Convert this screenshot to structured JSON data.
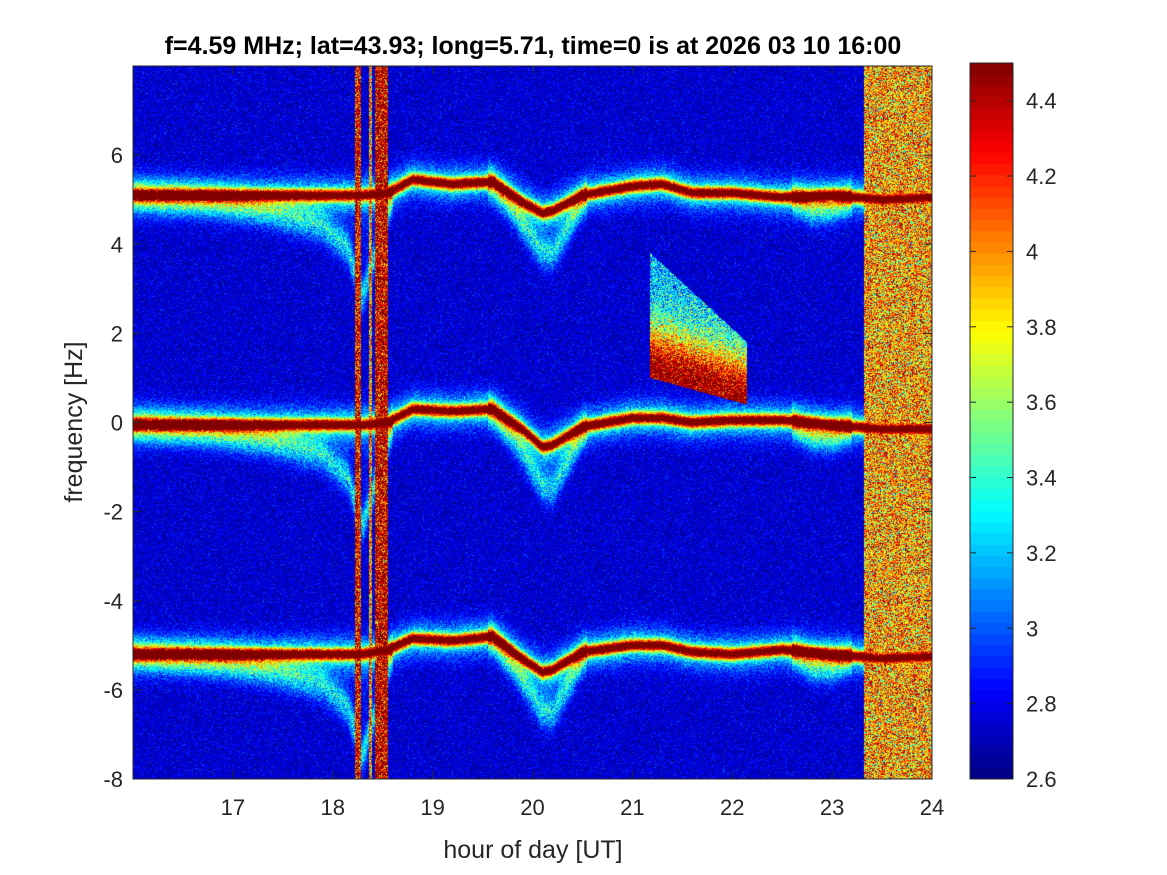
{
  "chart_data": {
    "type": "heatmap",
    "title": "f=4.59 MHz;  lat=43.93; long=5.71, time=0 is at 2026 03 10 16:00",
    "xlabel": "hour of day [UT]",
    "ylabel": "frequency [Hz]",
    "xlim": [
      16.0,
      24.0
    ],
    "ylim": [
      -8,
      8
    ],
    "xticks": [
      17,
      18,
      19,
      20,
      21,
      22,
      23,
      24
    ],
    "xtick_labels": [
      "17",
      "18",
      "19",
      "20",
      "21",
      "22",
      "23",
      "24"
    ],
    "yticks": [
      -8,
      -6,
      -4,
      -2,
      0,
      2,
      4,
      6
    ],
    "ytick_labels": [
      "-8",
      "-6",
      "-4",
      "-2",
      "0",
      "2",
      "4",
      "6"
    ],
    "colormap": "jet",
    "colorbar": {
      "clim": [
        2.6,
        4.5
      ],
      "ticks": [
        2.6,
        2.8,
        3,
        3.2,
        3.4,
        3.6,
        3.8,
        4,
        4.2,
        4.4
      ],
      "tick_labels": [
        "2.6",
        "2.8",
        "3",
        "3.2",
        "3.4",
        "3.6",
        "3.8",
        "4",
        "4.2",
        "4.4"
      ]
    },
    "background_level": 2.75,
    "traces": [
      {
        "x": [
          16.0,
          17.8,
          18.3,
          18.55,
          18.8,
          19.2,
          19.6,
          19.9,
          20.1,
          20.2,
          20.5,
          21.0,
          21.3,
          21.6,
          22.0,
          22.5,
          23.0,
          23.5,
          24.0
        ],
        "y": [
          5.1,
          5.1,
          5.1,
          5.15,
          5.45,
          5.35,
          5.4,
          4.95,
          4.7,
          4.75,
          5.1,
          5.3,
          5.35,
          5.15,
          5.15,
          5.05,
          5.1,
          5.0,
          5.05
        ]
      },
      {
        "x": [
          16.0,
          17.8,
          18.3,
          18.55,
          18.8,
          19.2,
          19.6,
          19.9,
          20.1,
          20.2,
          20.5,
          21.0,
          21.3,
          21.6,
          22.0,
          22.5,
          23.0,
          23.5,
          24.0
        ],
        "y": [
          -0.05,
          -0.05,
          -0.05,
          0.0,
          0.3,
          0.25,
          0.3,
          -0.15,
          -0.55,
          -0.5,
          -0.1,
          0.1,
          0.1,
          0.0,
          0.05,
          0.05,
          -0.05,
          -0.15,
          -0.15
        ]
      },
      {
        "x": [
          16.0,
          17.8,
          18.3,
          18.55,
          18.8,
          19.2,
          19.6,
          19.9,
          20.1,
          20.2,
          20.5,
          21.0,
          21.3,
          21.6,
          22.0,
          22.5,
          23.0,
          23.5,
          24.0
        ],
        "y": [
          -5.2,
          -5.2,
          -5.2,
          -5.1,
          -4.85,
          -4.9,
          -4.8,
          -5.3,
          -5.6,
          -5.55,
          -5.15,
          -5.0,
          -5.0,
          -5.15,
          -5.2,
          -5.1,
          -5.2,
          -5.3,
          -5.25
        ]
      }
    ],
    "dips": [
      {
        "x": [
          16.0,
          16.8,
          17.4,
          17.9,
          18.15,
          18.3,
          18.45,
          18.6
        ],
        "offset": [
          0.0,
          -0.15,
          -0.4,
          -0.7,
          -1.2,
          -2.3,
          -1.2,
          -0.1
        ]
      },
      {
        "x": [
          19.55,
          19.8,
          20.05,
          20.2,
          20.35,
          20.55
        ],
        "offset": [
          0.0,
          -0.3,
          -0.8,
          -1.0,
          -0.6,
          0.0
        ]
      },
      {
        "x": [
          22.6,
          22.8,
          23.0,
          23.2
        ],
        "offset": [
          0.0,
          -0.3,
          -0.3,
          0.0
        ]
      }
    ],
    "bands": [
      {
        "x": [
          18.22,
          18.28
        ],
        "level": 4.3
      },
      {
        "x": [
          18.36,
          18.39
        ],
        "level": 4.0
      },
      {
        "x": [
          18.42,
          18.55
        ],
        "level": 4.4
      },
      {
        "x": [
          23.32,
          24.0
        ],
        "level": 3.95
      }
    ],
    "patches": [
      {
        "x": [
          21.18,
          22.15
        ],
        "y_top": [
          3.8,
          1.8
        ],
        "y_bottom": [
          1.0,
          0.4
        ],
        "core": [
          1.2,
          0.5
        ],
        "level": 4.5
      }
    ]
  }
}
